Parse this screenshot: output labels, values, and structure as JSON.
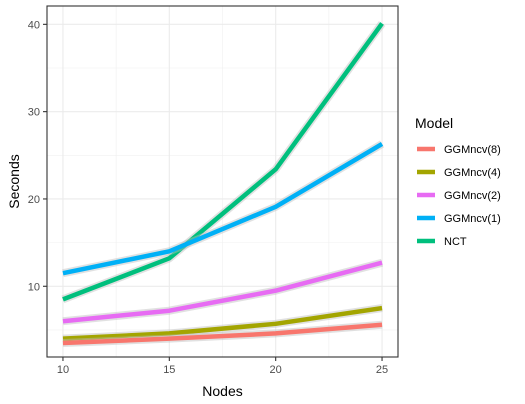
{
  "chart_data": {
    "type": "line",
    "xlabel": "Nodes",
    "ylabel": "Seconds",
    "x": [
      10,
      15,
      20,
      25
    ],
    "xlim": [
      9.25,
      25.75
    ],
    "ylim": [
      1.9,
      42.1
    ],
    "x_ticks": [
      "10",
      "15",
      "20",
      "25"
    ],
    "y_ticks": [
      "10",
      "20",
      "30",
      "40"
    ],
    "grid": true,
    "legend_title": "Model",
    "legend_position": "right",
    "series": [
      {
        "name": "GGMncv(8)",
        "color": "#F8766D",
        "values": [
          3.5,
          4.0,
          4.6,
          5.6
        ]
      },
      {
        "name": "GGMncv(4)",
        "color": "#A3A500",
        "values": [
          4.0,
          4.6,
          5.7,
          7.5
        ]
      },
      {
        "name": "GGMncv(2)",
        "color": "#E76BF3",
        "values": [
          6.0,
          7.2,
          9.5,
          12.7
        ]
      },
      {
        "name": "GGMncv(1)",
        "color": "#00B0F6",
        "values": [
          11.5,
          14.0,
          19.1,
          26.3
        ]
      },
      {
        "name": "NCT",
        "color": "#00BF7D",
        "values": [
          8.5,
          13.2,
          23.4,
          40.1
        ]
      }
    ]
  }
}
